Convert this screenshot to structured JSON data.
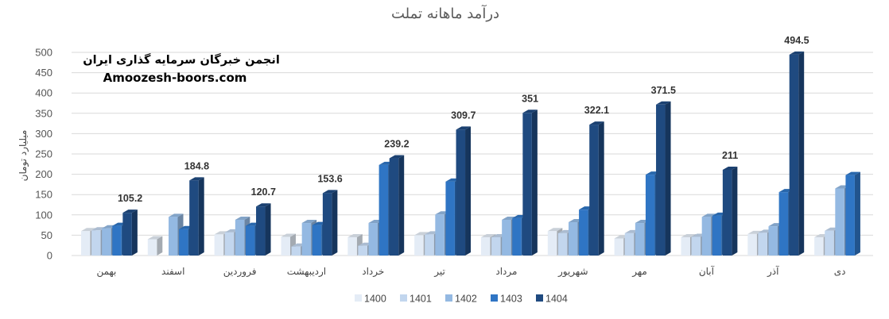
{
  "chart_data": {
    "type": "bar",
    "title": "درآمد ماهانه تملت",
    "ylabel": "میلیارد تومان",
    "xlabel": "",
    "ylim": [
      0,
      500
    ],
    "yticks": [
      0,
      50,
      100,
      150,
      200,
      250,
      300,
      350,
      400,
      450,
      500
    ],
    "grid": true,
    "legend_position": "bottom",
    "categories": [
      "بهمن",
      "اسفند",
      "فروردین",
      "اردیبهشت",
      "خرداد",
      "تیر",
      "مرداد",
      "شهریور",
      "مهر",
      "آبان",
      "آذر",
      "دی"
    ],
    "series": [
      {
        "name": "1400",
        "color": "#e4ecf6",
        "values": [
          60,
          40,
          52,
          46,
          45,
          50,
          45,
          60,
          42,
          45,
          53,
          45
        ]
      },
      {
        "name": "1401",
        "color": "#c2d6ee",
        "values": [
          62,
          null,
          57,
          22,
          24,
          52,
          45,
          55,
          55,
          46,
          56,
          61
        ]
      },
      {
        "name": "1402",
        "color": "#94b9e2",
        "values": [
          67,
          95,
          88,
          80,
          80,
          101,
          88,
          82,
          80,
          95,
          72,
          165
        ]
      },
      {
        "name": "1403",
        "color": "#2f75c4",
        "values": [
          73,
          65,
          73,
          75,
          223,
          182,
          92,
          113,
          199,
          98,
          156,
          198
        ]
      },
      {
        "name": "1404",
        "color": "#1f4a80",
        "values": [
          105.2,
          184.8,
          120.7,
          153.6,
          239.2,
          309.7,
          351,
          322.1,
          371.5,
          211,
          494.5,
          null
        ]
      }
    ],
    "data_labels": {
      "series": "1404",
      "labels": [
        "105.2",
        "184.8",
        "120.7",
        "153.6",
        "239.2",
        "309.7",
        "351",
        "322.1",
        "371.5",
        "211",
        "494.5",
        ""
      ]
    }
  },
  "watermark": {
    "line1": "انجمن خبرگان سرمایه گذاری ایران",
    "line2": "Amoozesh-boors.com"
  }
}
